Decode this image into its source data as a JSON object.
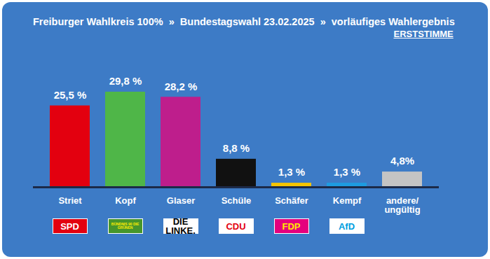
{
  "chart_data": {
    "type": "bar",
    "title": "Freiburger Wahlkreis 100%  »  Bundestagswahl 23.02.2025  »  vorläufiges Wahlergebnis",
    "subtitle": "ERSTSTIMME",
    "categories": [
      "Striet",
      "Kopf",
      "Glaser",
      "Schüle",
      "Schäfer",
      "Kempf",
      "andere/ ungültig"
    ],
    "values": [
      25.5,
      29.8,
      28.2,
      8.8,
      1.3,
      1.3,
      4.8
    ],
    "value_labels": [
      "25,5 %",
      "29,8 %",
      "28,2 %",
      "8,8 %",
      "1,3 %",
      "1,3 %",
      "4,8%"
    ],
    "colors": [
      "#e3000f",
      "#4fb648",
      "#be1e8c",
      "#111111",
      "#f5c400",
      "#1e9be0",
      "#c4c4c4"
    ],
    "parties": [
      "SPD",
      "BÜNDNIS 90 DIE GRÜNEN",
      "DIE LINKE.",
      "CDU",
      "FDP",
      "AfD",
      null
    ],
    "data_labels": true,
    "tick_labels": "x"
  }
}
